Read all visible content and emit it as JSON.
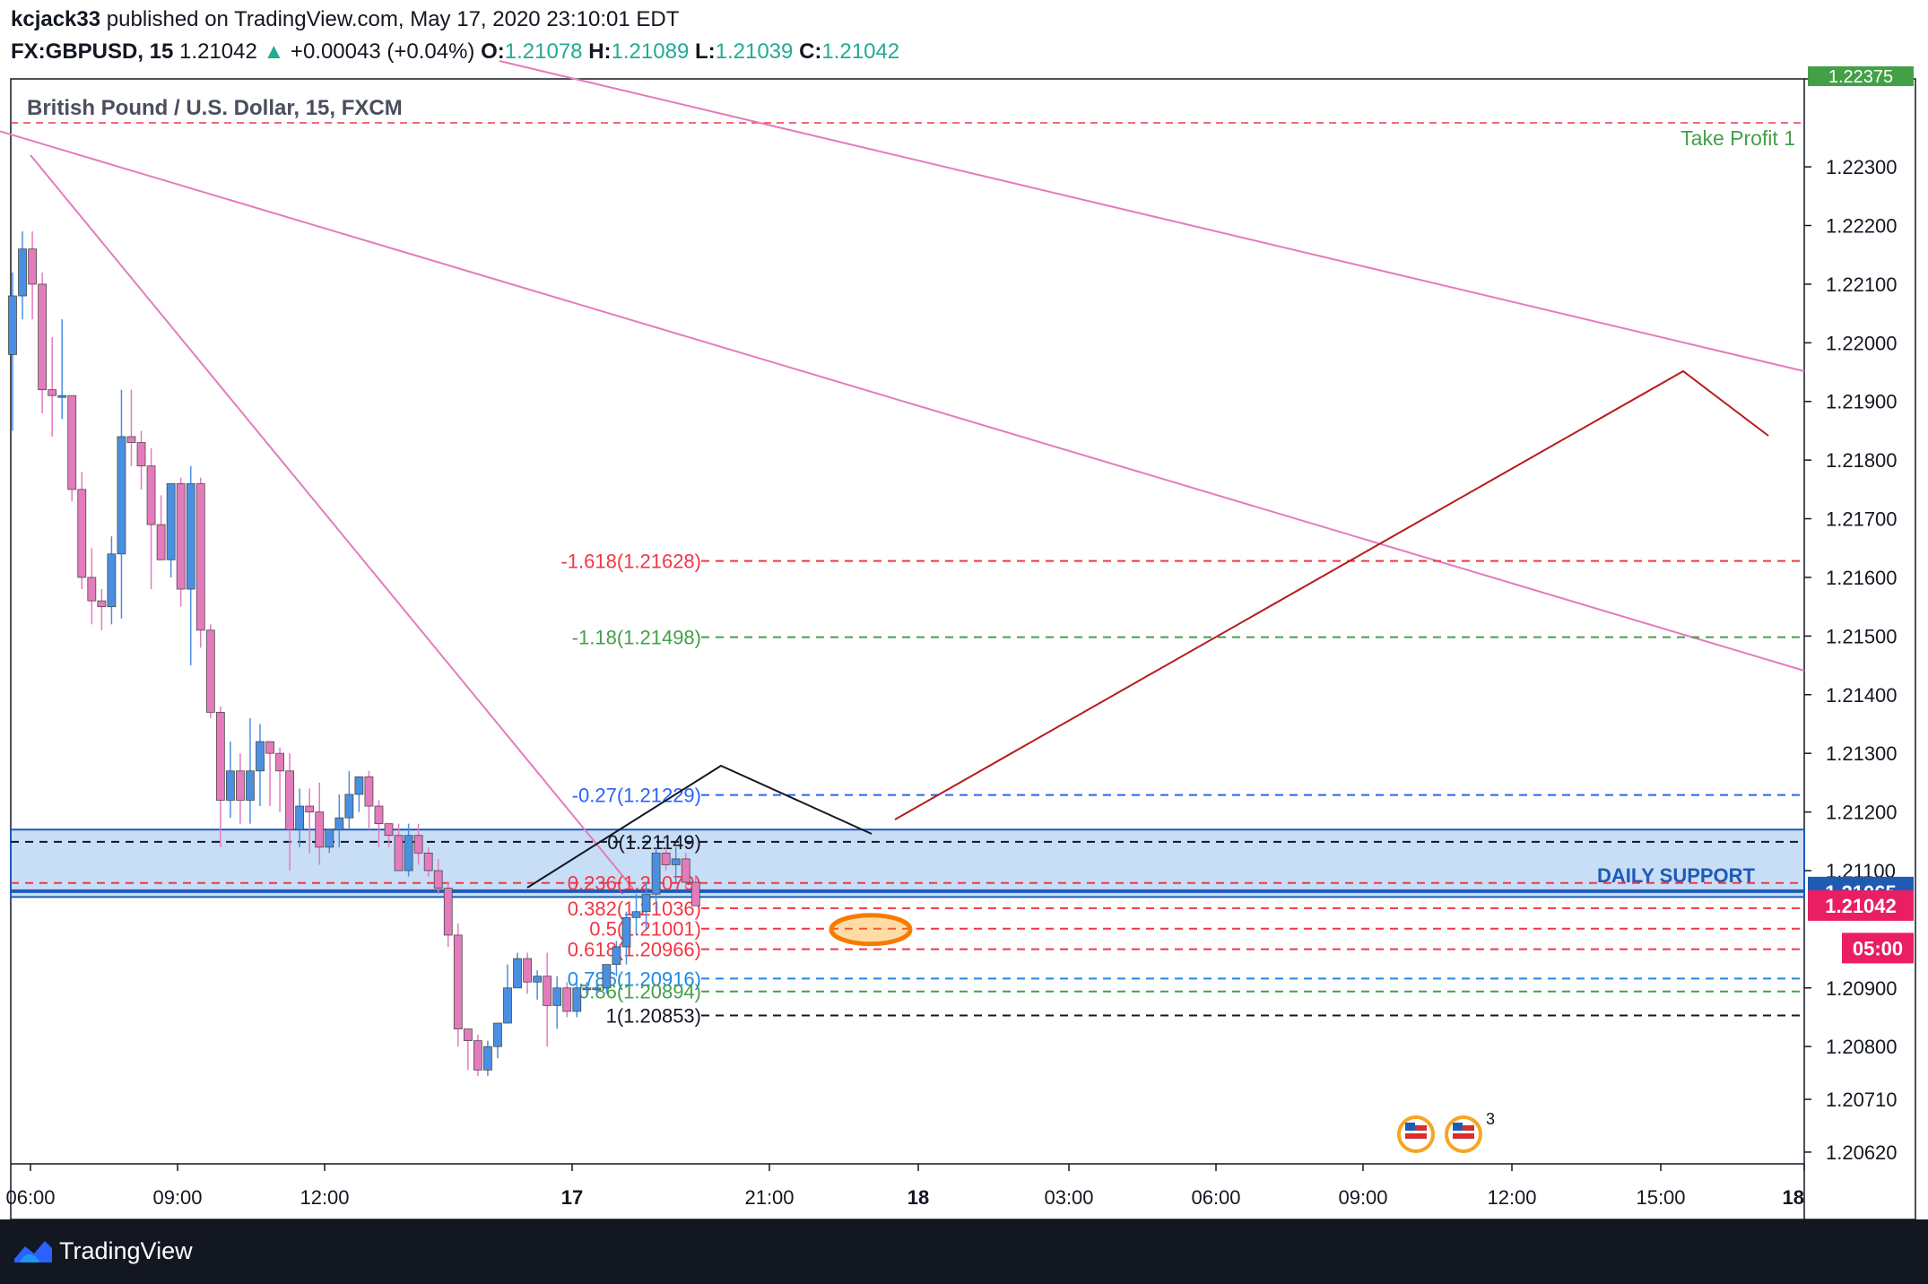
{
  "header": {
    "author": "kcjack33",
    "published_text": " published on TradingView.com, May 17, 2020 23:10:01 EDT",
    "symbol": "FX:GBPUSD, 15",
    "last_price": "1.21042",
    "change_arrow": "▲",
    "change": "+0.00043 (+0.04%)",
    "o_label": "O:",
    "o_value": "1.21078",
    "h_label": "H:",
    "h_value": "1.21089",
    "l_label": "L:",
    "l_value": "1.21039",
    "c_label": "C:",
    "c_value": "1.21042"
  },
  "chart_title": "British Pound / U.S. Dollar, 15, FXCM",
  "footer": {
    "brand": "TradingView",
    "logo_icon": "tradingview-logo-icon"
  },
  "colors": {
    "up": "#4a90e2",
    "down": "#e47bbd",
    "zone": "#4a90e2",
    "price_badge": "#e91e63",
    "support_badge": "#1e5bb5"
  },
  "chart_data": {
    "type": "candlestick",
    "title": "British Pound / U.S. Dollar, 15, FXCM",
    "interval_minutes": 15,
    "x_start": "2020-05-15 05:45",
    "y_axis_ticks": [
      "1.22300",
      "1.22200",
      "1.22100",
      "1.22000",
      "1.21900",
      "1.21800",
      "1.21700",
      "1.21600",
      "1.21500",
      "1.21400",
      "1.21300",
      "1.21200",
      "1.21100",
      "1.20900",
      "1.20800",
      "1.20710",
      "1.20620"
    ],
    "x_axis_labels": [
      "06:00",
      "09:00",
      "12:00",
      "17",
      "21:00",
      "18",
      "03:00",
      "06:00",
      "09:00",
      "12:00",
      "15:00",
      "18"
    ],
    "ohlc": [
      [
        1.2198,
        1.2212,
        1.2185,
        1.2208
      ],
      [
        1.2208,
        1.2219,
        1.2204,
        1.2216
      ],
      [
        1.2216,
        1.2219,
        1.2204,
        1.221
      ],
      [
        1.221,
        1.2212,
        1.2188,
        1.2192
      ],
      [
        1.2192,
        1.2201,
        1.2184,
        1.2191
      ],
      [
        1.2191,
        1.2204,
        1.2187,
        1.2191
      ],
      [
        1.2191,
        1.2191,
        1.2173,
        1.2175
      ],
      [
        1.2175,
        1.2178,
        1.2158,
        1.216
      ],
      [
        1.216,
        1.2165,
        1.2152,
        1.2156
      ],
      [
        1.2156,
        1.2158,
        1.2151,
        1.2155
      ],
      [
        1.2155,
        1.2167,
        1.2152,
        1.2164
      ],
      [
        1.2164,
        1.2192,
        1.2153,
        1.2184
      ],
      [
        1.2184,
        1.2192,
        1.2179,
        1.2183
      ],
      [
        1.2183,
        1.2185,
        1.2175,
        1.2179
      ],
      [
        1.2179,
        1.2182,
        1.2158,
        1.2169
      ],
      [
        1.2169,
        1.2174,
        1.2163,
        1.2163
      ],
      [
        1.2163,
        1.2176,
        1.216,
        1.2176
      ],
      [
        1.2176,
        1.2177,
        1.2155,
        1.2158
      ],
      [
        1.2158,
        1.2179,
        1.2145,
        1.2176
      ],
      [
        1.2176,
        1.2177,
        1.2148,
        1.2151
      ],
      [
        1.2151,
        1.2152,
        1.2136,
        1.2137
      ],
      [
        1.2137,
        1.2138,
        1.2114,
        1.2122
      ],
      [
        1.2122,
        1.2132,
        1.2119,
        1.2127
      ],
      [
        1.2127,
        1.213,
        1.2118,
        1.2122
      ],
      [
        1.2122,
        1.2136,
        1.2118,
        1.2127
      ],
      [
        1.2127,
        1.2135,
        1.2121,
        1.2132
      ],
      [
        1.2132,
        1.2132,
        1.2121,
        1.213
      ],
      [
        1.213,
        1.2131,
        1.212,
        1.2127
      ],
      [
        1.2127,
        1.213,
        1.211,
        1.2117
      ],
      [
        1.2117,
        1.2124,
        1.2114,
        1.2121
      ],
      [
        1.2121,
        1.2124,
        1.2113,
        1.212
      ],
      [
        1.212,
        1.2125,
        1.2111,
        1.2114
      ],
      [
        1.2114,
        1.2117,
        1.2113,
        1.2117
      ],
      [
        1.2117,
        1.2123,
        1.2114,
        1.2119
      ],
      [
        1.2119,
        1.2127,
        1.2117,
        1.2123
      ],
      [
        1.2123,
        1.2126,
        1.212,
        1.2126
      ],
      [
        1.2126,
        1.2127,
        1.2117,
        1.2121
      ],
      [
        1.2121,
        1.2122,
        1.2114,
        1.2118
      ],
      [
        1.2118,
        1.2118,
        1.2114,
        1.2116
      ],
      [
        1.2116,
        1.2118,
        1.211,
        1.211
      ],
      [
        1.211,
        1.2118,
        1.2109,
        1.2116
      ],
      [
        1.2116,
        1.2118,
        1.2111,
        1.2113
      ],
      [
        1.2113,
        1.2114,
        1.2109,
        1.211
      ],
      [
        1.211,
        1.2112,
        1.2106,
        1.2107
      ],
      [
        1.2107,
        1.2108,
        1.2097,
        1.2099
      ],
      [
        1.2099,
        1.2101,
        1.208,
        1.2083
      ],
      [
        1.2083,
        1.2083,
        1.2076,
        1.2081
      ],
      [
        1.2081,
        1.2082,
        1.2075,
        1.2076
      ],
      [
        1.2076,
        1.2081,
        1.2075,
        1.208
      ],
      [
        1.208,
        1.2084,
        1.2078,
        1.2084
      ],
      [
        1.2084,
        1.2094,
        1.2084,
        1.209
      ],
      [
        1.209,
        1.2096,
        1.209,
        1.2095
      ],
      [
        1.2095,
        1.2096,
        1.2089,
        1.2091
      ],
      [
        1.2091,
        1.2093,
        1.2088,
        1.2092
      ],
      [
        1.2092,
        1.2096,
        1.208,
        1.2087
      ],
      [
        1.2087,
        1.2092,
        1.2083,
        1.209
      ],
      [
        1.209,
        1.2091,
        1.2085,
        1.2086
      ],
      [
        1.2086,
        1.2092,
        1.2085,
        1.209
      ],
      [
        1.209,
        1.2091,
        1.2089,
        1.209
      ],
      [
        1.209,
        1.2091,
        1.2089,
        1.209
      ],
      [
        1.209,
        1.2094,
        1.2089,
        1.2094
      ],
      [
        1.2094,
        1.2098,
        1.2092,
        1.2097
      ],
      [
        1.2097,
        1.2103,
        1.2094,
        1.2102
      ],
      [
        1.2102,
        1.2106,
        1.2099,
        1.2103
      ],
      [
        1.2103,
        1.2108,
        1.21,
        1.2106
      ],
      [
        1.2106,
        1.2114,
        1.2103,
        1.2113
      ],
      [
        1.2113,
        1.2114,
        1.211,
        1.2111
      ],
      [
        1.2111,
        1.2114,
        1.2108,
        1.2112
      ],
      [
        1.2112,
        1.2113,
        1.2107,
        1.2108
      ],
      [
        1.2108,
        1.2109,
        1.2104,
        1.2104
      ]
    ],
    "fibonacci": [
      {
        "label": "-1.618(1.21628)",
        "value": 1.21628,
        "color": "#f23645"
      },
      {
        "label": "-1.18(1.21498)",
        "value": 1.21498,
        "color": "#43a047"
      },
      {
        "label": "-0.27(1.21229)",
        "value": 1.21229,
        "color": "#2962ff"
      },
      {
        "label": "0(1.21149)",
        "value": 1.21149,
        "color": "#131722"
      },
      {
        "label": "0.236(1.21079)",
        "value": 1.21079,
        "color": "#f23645"
      },
      {
        "label": "0.382(1.21036)",
        "value": 1.21036,
        "color": "#f23645"
      },
      {
        "label": "0.5(1.21001)",
        "value": 1.21001,
        "color": "#f23645"
      },
      {
        "label": "0.618(1.20966)",
        "value": 1.20966,
        "color": "#f23645"
      },
      {
        "label": "0.786(1.20916)",
        "value": 1.20916,
        "color": "#1e88e5"
      },
      {
        "label": "0.86(1.20894)",
        "value": 1.20894,
        "color": "#43a047"
      },
      {
        "label": "1(1.20853)",
        "value": 1.20853,
        "color": "#131722"
      }
    ],
    "take_profit": {
      "label": "Take Profit 1",
      "value": 1.22375
    },
    "support_zone": {
      "label": "DAILY SUPPORT",
      "top": 1.2117,
      "bottom": 1.21055,
      "line": 1.21065
    },
    "price_badges": [
      {
        "text": "1.21065",
        "value": 1.21065,
        "color": "#1e5bb5"
      },
      {
        "text": "1.21042",
        "value": 1.21042,
        "color": "#e91e63"
      },
      {
        "text": "05:00",
        "value": 1.21,
        "color": "#e91e63"
      }
    ],
    "top_badge_text": "1.22375",
    "event_icons": [
      "us-flag-icon",
      "us-flag-icon"
    ],
    "event_count": "3"
  }
}
